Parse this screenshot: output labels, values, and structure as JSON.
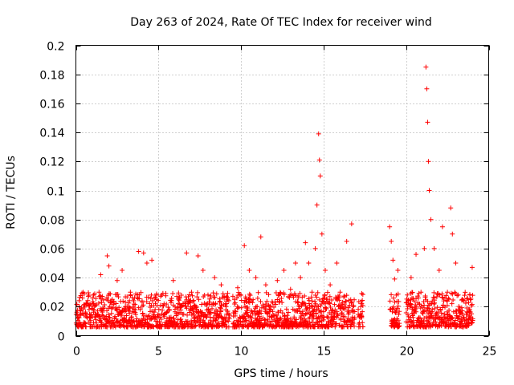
{
  "chart_data": {
    "type": "scatter",
    "title": "Day 263 of 2024, Rate Of TEC Index for receiver wind",
    "xlabel": "GPS time / hours",
    "ylabel": "ROTI / TECUs",
    "xlim": [
      0,
      25
    ],
    "ylim": [
      0,
      0.2
    ],
    "xticks": [
      0,
      5,
      10,
      15,
      20,
      25
    ],
    "xtick_labels": [
      "0",
      "5",
      "10",
      "15",
      "20",
      "25"
    ],
    "yticks": [
      0,
      0.02,
      0.04,
      0.06,
      0.08,
      0.1,
      0.12,
      0.14,
      0.16,
      0.18,
      0.2
    ],
    "ytick_labels": [
      "0",
      "0.02",
      "0.04",
      "0.06",
      "0.08",
      "0.1",
      "0.12",
      "0.14",
      "0.16",
      "0.18",
      "0.2"
    ],
    "grid": true,
    "marker": "+",
    "series_color": "#ff0000",
    "data_gaps_hours": [
      [
        9.3,
        9.5
      ],
      [
        16.9,
        17.1
      ],
      [
        17.4,
        18.9
      ],
      [
        19.6,
        20.0
      ]
    ],
    "series": [
      {
        "name": "ROTI",
        "points": [
          [
            0.1,
            0.012
          ],
          [
            0.2,
            0.02
          ],
          [
            0.3,
            0.008
          ],
          [
            0.4,
            0.026
          ],
          [
            0.6,
            0.015
          ],
          [
            0.8,
            0.018
          ],
          [
            1.0,
            0.022
          ],
          [
            1.2,
            0.011
          ],
          [
            1.4,
            0.03
          ],
          [
            1.5,
            0.042
          ],
          [
            1.7,
            0.019
          ],
          [
            1.9,
            0.055
          ],
          [
            2.0,
            0.048
          ],
          [
            2.2,
            0.025
          ],
          [
            2.5,
            0.038
          ],
          [
            2.8,
            0.045
          ],
          [
            3.0,
            0.02
          ],
          [
            3.3,
            0.03
          ],
          [
            3.5,
            0.024
          ],
          [
            3.8,
            0.058
          ],
          [
            4.1,
            0.057
          ],
          [
            4.3,
            0.05
          ],
          [
            4.6,
            0.052
          ],
          [
            4.8,
            0.018
          ],
          [
            5.2,
            0.028
          ],
          [
            5.5,
            0.016
          ],
          [
            5.9,
            0.038
          ],
          [
            6.2,
            0.022
          ],
          [
            6.7,
            0.057
          ],
          [
            7.0,
            0.03
          ],
          [
            7.4,
            0.055
          ],
          [
            7.7,
            0.045
          ],
          [
            8.0,
            0.028
          ],
          [
            8.4,
            0.04
          ],
          [
            8.8,
            0.035
          ],
          [
            9.1,
            0.02
          ],
          [
            9.6,
            0.025
          ],
          [
            9.8,
            0.033
          ],
          [
            10.2,
            0.062
          ],
          [
            10.5,
            0.045
          ],
          [
            10.9,
            0.04
          ],
          [
            11.2,
            0.068
          ],
          [
            11.5,
            0.035
          ],
          [
            11.8,
            0.02
          ],
          [
            12.2,
            0.038
          ],
          [
            12.6,
            0.045
          ],
          [
            13.0,
            0.032
          ],
          [
            13.3,
            0.05
          ],
          [
            13.6,
            0.04
          ],
          [
            13.9,
            0.064
          ],
          [
            14.1,
            0.05
          ],
          [
            14.3,
            0.03
          ],
          [
            14.5,
            0.06
          ],
          [
            14.6,
            0.09
          ],
          [
            14.7,
            0.139
          ],
          [
            14.75,
            0.121
          ],
          [
            14.8,
            0.11
          ],
          [
            14.9,
            0.07
          ],
          [
            15.1,
            0.045
          ],
          [
            15.4,
            0.035
          ],
          [
            15.8,
            0.05
          ],
          [
            16.0,
            0.03
          ],
          [
            16.4,
            0.065
          ],
          [
            16.7,
            0.077
          ],
          [
            17.25,
            0.02
          ],
          [
            17.3,
            0.014
          ],
          [
            17.35,
            0.009
          ],
          [
            19.0,
            0.075
          ],
          [
            19.1,
            0.065
          ],
          [
            19.2,
            0.052
          ],
          [
            19.3,
            0.039
          ],
          [
            19.4,
            0.028
          ],
          [
            19.5,
            0.045
          ],
          [
            20.1,
            0.02
          ],
          [
            20.3,
            0.04
          ],
          [
            20.6,
            0.056
          ],
          [
            20.9,
            0.03
          ],
          [
            21.1,
            0.06
          ],
          [
            21.2,
            0.185
          ],
          [
            21.25,
            0.17
          ],
          [
            21.3,
            0.147
          ],
          [
            21.35,
            0.12
          ],
          [
            21.4,
            0.1
          ],
          [
            21.5,
            0.08
          ],
          [
            21.7,
            0.06
          ],
          [
            22.0,
            0.045
          ],
          [
            22.2,
            0.075
          ],
          [
            22.5,
            0.03
          ],
          [
            22.7,
            0.088
          ],
          [
            22.8,
            0.07
          ],
          [
            23.0,
            0.05
          ],
          [
            23.4,
            0.025
          ],
          [
            23.8,
            0.018
          ],
          [
            24.0,
            0.047
          ]
        ]
      }
    ]
  }
}
